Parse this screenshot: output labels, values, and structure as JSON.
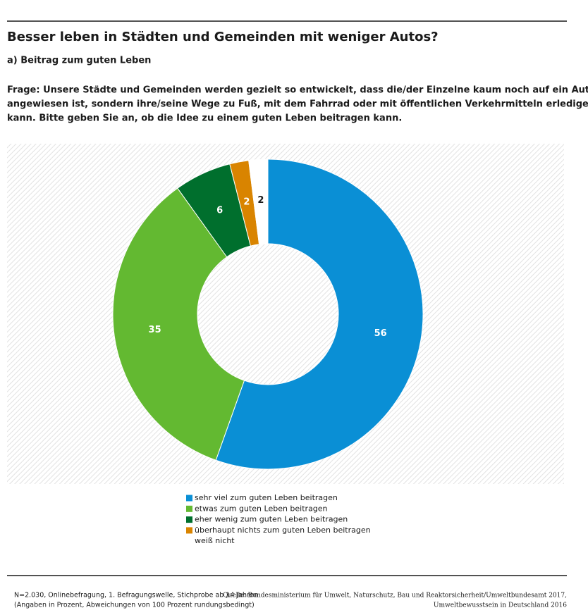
{
  "chart_data": {
    "type": "donut",
    "title": "Besser leben in Städten und Gemeinden mit weniger Autos?",
    "subtitle": "a) Beitrag zum guten Leben",
    "question": [
      "Frage: Unsere Städte und Gemeinden werden gezielt so entwickelt, dass die/der Einzelne kaum noch auf ein Auto",
      "angewiesen ist, sondern ihre/seine Wege zu Fuß, mit dem Fahrrad oder mit öffentlichen Verkehrmitteln erledigen",
      "kann. Bitte geben Sie an, ob die Idee zu einem guten Leben beitragen kann."
    ],
    "categories": [
      "sehr viel zum guten Leben beitragen",
      "etwas zum guten Leben beitragen",
      "eher wenig zum guten Leben beitragen",
      "überhaupt nichts zum guten Leben beitragen",
      "weiß nicht"
    ],
    "values": [
      56,
      35,
      6,
      2,
      2
    ],
    "colors": [
      "#0a8fd5",
      "#63b931",
      "#006f2d",
      "#d98400",
      "#ffffff"
    ],
    "note": [
      "N=2.030, Onlinebefragung, 1. Befragungswelle, Stichprobe ab 14 Jahren",
      "(Angaben in Prozent, Abweichungen von 100 Prozent rundungsbedingt)"
    ],
    "source": [
      "Quelle: Bundesministerium für Umwelt, Naturschutz, Bau und Reaktorsicherheit/Umweltbundesamt 2017,",
      "Umweltbewusstsein in Deutschland 2016"
    ]
  }
}
